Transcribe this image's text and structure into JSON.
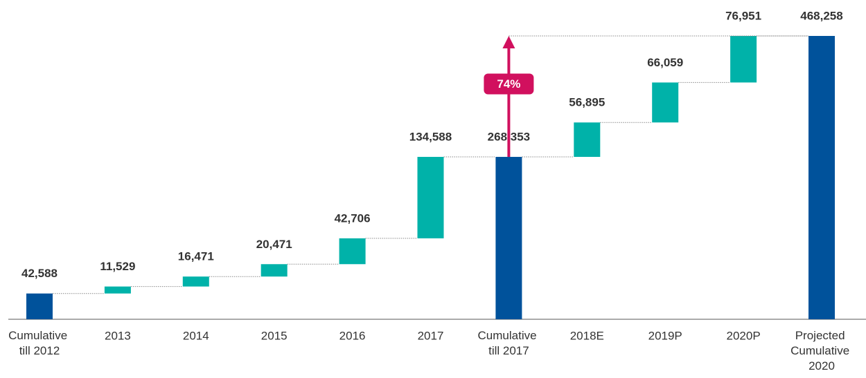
{
  "chart_data": {
    "type": "waterfall",
    "categories": [
      "Cumulative till 2012",
      "2013",
      "2014",
      "2015",
      "2016",
      "2017",
      "Cumulative till 2017",
      "2018E",
      "2019P",
      "2020P",
      "Projected Cumulative 2020"
    ],
    "values": [
      42588,
      11529,
      16471,
      20471,
      42706,
      134588,
      268353,
      56895,
      66059,
      76951,
      468258
    ],
    "value_labels": [
      "42,588",
      "11,529",
      "16,471",
      "20,471",
      "42,706",
      "134,588",
      "268,353",
      "56,895",
      "66,059",
      "76,951",
      "468,258"
    ],
    "total_indices": [
      0,
      6,
      10
    ],
    "color": "#00b2a9",
    "total_color": "#00529b",
    "annotation": "74%",
    "annotation_color": "#d1105e"
  }
}
